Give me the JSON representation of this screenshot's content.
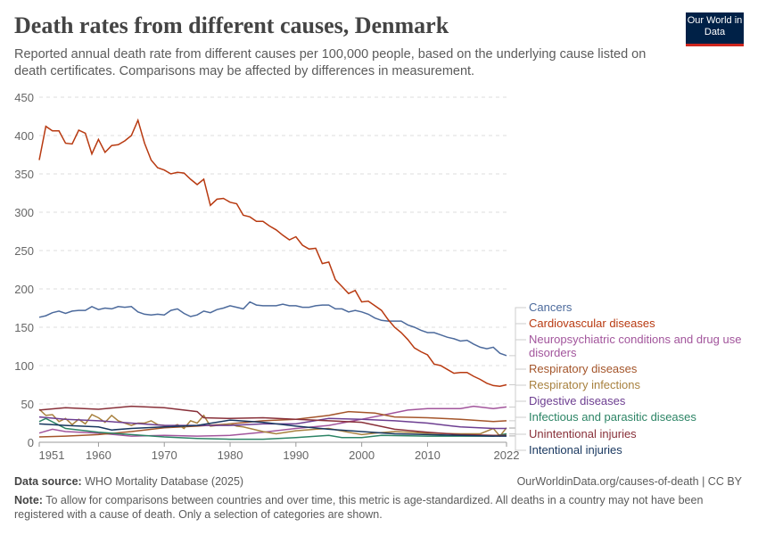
{
  "header": {
    "title": "Death rates from different causes, Denmark",
    "subtitle": "Reported annual death rate from different causes per 100,000 people, based on the underlying cause listed on death certificates. Comparisons may be affected by differences in measurement.",
    "logo": "Our World in Data"
  },
  "footer": {
    "source_label": "Data source:",
    "source": "WHO Mortality Database (2025)",
    "url": "OurWorldinData.org/causes-of-death | CC BY",
    "note_label": "Note:",
    "note": "To allow for comparisons between countries and over time, this metric is age-standardized. All deaths in a country may not have been registered with a cause of death. Only a selection of categories are shown."
  },
  "chart_data": {
    "type": "line",
    "title": "Death rates from different causes, Denmark",
    "xlabel": "",
    "ylabel": "",
    "xlim": [
      1951,
      2022
    ],
    "ylim": [
      0,
      450
    ],
    "grid": true,
    "legend": "right",
    "x_ticks": [
      "1951",
      "1960",
      "1970",
      "1980",
      "1990",
      "2000",
      "2010",
      "2022"
    ],
    "y_ticks": [
      "0",
      "50",
      "100",
      "150",
      "200",
      "250",
      "300",
      "350",
      "400",
      "450"
    ],
    "series": [
      {
        "name": "Cancers",
        "color": "#4c6a9c",
        "x": [
          1951,
          1952,
          1953,
          1954,
          1955,
          1956,
          1957,
          1958,
          1959,
          1960,
          1961,
          1962,
          1963,
          1964,
          1965,
          1966,
          1967,
          1968,
          1969,
          1970,
          1971,
          1972,
          1973,
          1974,
          1975,
          1976,
          1977,
          1978,
          1979,
          1980,
          1981,
          1982,
          1983,
          1984,
          1985,
          1986,
          1987,
          1988,
          1989,
          1990,
          1991,
          1992,
          1993,
          1994,
          1995,
          1996,
          1997,
          1998,
          1999,
          2000,
          2001,
          2002,
          2003,
          2004,
          2005,
          2006,
          2007,
          2008,
          2009,
          2010,
          2011,
          2012,
          2013,
          2014,
          2015,
          2016,
          2017,
          2018,
          2019,
          2020,
          2021,
          2022
        ],
        "values": [
          163,
          165,
          169,
          171,
          168,
          171,
          172,
          172,
          177,
          173,
          175,
          174,
          177,
          176,
          177,
          170,
          167,
          166,
          167,
          166,
          172,
          174,
          168,
          164,
          166,
          171,
          169,
          173,
          175,
          178,
          176,
          174,
          183,
          179,
          178,
          178,
          178,
          180,
          178,
          178,
          176,
          176,
          178,
          179,
          179,
          174,
          174,
          170,
          172,
          170,
          167,
          162,
          159,
          158,
          158,
          158,
          153,
          150,
          146,
          143,
          143,
          140,
          137,
          135,
          132,
          133,
          128,
          124,
          122,
          124,
          116,
          113
        ]
      },
      {
        "name": "Cardiovascular diseases",
        "color": "#b83a11",
        "x": [
          1951,
          1952,
          1953,
          1954,
          1955,
          1956,
          1957,
          1958,
          1959,
          1960,
          1961,
          1962,
          1963,
          1964,
          1965,
          1966,
          1967,
          1968,
          1969,
          1970,
          1971,
          1972,
          1973,
          1974,
          1975,
          1976,
          1977,
          1978,
          1979,
          1980,
          1981,
          1982,
          1983,
          1984,
          1985,
          1986,
          1987,
          1988,
          1989,
          1990,
          1991,
          1992,
          1993,
          1994,
          1995,
          1996,
          1997,
          1998,
          1999,
          2000,
          2001,
          2002,
          2003,
          2004,
          2005,
          2006,
          2007,
          2008,
          2009,
          2010,
          2011,
          2012,
          2013,
          2014,
          2015,
          2016,
          2017,
          2018,
          2019,
          2020,
          2021,
          2022
        ],
        "values": [
          368,
          412,
          406,
          406,
          390,
          389,
          407,
          403,
          376,
          395,
          378,
          387,
          388,
          393,
          400,
          420,
          390,
          368,
          358,
          355,
          350,
          352,
          351,
          343,
          336,
          343,
          309,
          317,
          318,
          313,
          311,
          296,
          294,
          288,
          288,
          282,
          277,
          270,
          264,
          268,
          257,
          252,
          253,
          233,
          235,
          212,
          203,
          194,
          198,
          183,
          184,
          178,
          172,
          160,
          150,
          143,
          134,
          123,
          118,
          114,
          102,
          100,
          95,
          90,
          91,
          91,
          86,
          82,
          77,
          74,
          73,
          75
        ]
      },
      {
        "name": "Neuropsychiatric conditions and drug use disorders",
        "color": "#a2559c",
        "x": [
          1951,
          1953,
          1955,
          1960,
          1965,
          1970,
          1975,
          1980,
          1985,
          1990,
          1995,
          2000,
          2003,
          2007,
          2010,
          2015,
          2017,
          2020,
          2022
        ],
        "values": [
          12,
          17,
          14,
          12,
          8,
          9,
          8,
          9,
          13,
          18,
          22,
          30,
          35,
          42,
          44,
          44,
          47,
          44,
          46
        ]
      },
      {
        "name": "Respiratory diseases",
        "color": "#a4552a",
        "x": [
          1951,
          1955,
          1960,
          1965,
          1970,
          1975,
          1980,
          1985,
          1990,
          1995,
          1998,
          2002,
          2005,
          2010,
          2015,
          2020,
          2022
        ],
        "values": [
          7,
          8,
          10,
          14,
          19,
          21,
          24,
          28,
          30,
          35,
          40,
          38,
          33,
          32,
          30,
          27,
          28
        ]
      },
      {
        "name": "Respiratory infections",
        "color": "#a8813f",
        "x": [
          1951,
          1952,
          1953,
          1954,
          1955,
          1956,
          1957,
          1958,
          1959,
          1960,
          1961,
          1962,
          1963,
          1964,
          1965,
          1966,
          1967,
          1968,
          1969,
          1970,
          1971,
          1972,
          1973,
          1974,
          1975,
          1976,
          1977,
          1978,
          1979,
          1980,
          1981,
          1982,
          1985,
          1987,
          1990,
          1993,
          1995,
          1998,
          2000,
          2002,
          2005,
          2010,
          2015,
          2018,
          2020,
          2021,
          2022
        ],
        "values": [
          43,
          35,
          36,
          27,
          31,
          23,
          30,
          24,
          36,
          32,
          26,
          35,
          28,
          25,
          22,
          25,
          25,
          28,
          23,
          22,
          20,
          23,
          18,
          28,
          25,
          35,
          21,
          22,
          23,
          24,
          21,
          20,
          14,
          11,
          15,
          17,
          18,
          13,
          10,
          12,
          14,
          12,
          11,
          11,
          18,
          8,
          19
        ]
      },
      {
        "name": "Digestive diseases",
        "color": "#6d3e91",
        "x": [
          1951,
          1955,
          1960,
          1965,
          1970,
          1975,
          1980,
          1985,
          1990,
          1995,
          2000,
          2005,
          2010,
          2015,
          2020,
          2022
        ],
        "values": [
          33,
          30,
          28,
          25,
          22,
          22,
          22,
          24,
          24,
          31,
          30,
          28,
          25,
          20,
          18,
          18
        ]
      },
      {
        "name": "Infectious and parasitic diseases",
        "color": "#2c8465",
        "x": [
          1951,
          1952,
          1955,
          1960,
          1965,
          1970,
          1975,
          1980,
          1985,
          1990,
          1995,
          1997,
          2000,
          2003,
          2010,
          2015,
          2020,
          2022
        ],
        "values": [
          27,
          31,
          18,
          13,
          10,
          7,
          5,
          4,
          4,
          6,
          9,
          6,
          6,
          9,
          8,
          8,
          8,
          11
        ]
      },
      {
        "name": "Unintentional injuries",
        "color": "#883039",
        "x": [
          1951,
          1955,
          1960,
          1965,
          1970,
          1975,
          1976,
          1980,
          1985,
          1990,
          1995,
          2000,
          2005,
          2010,
          2015,
          2020,
          2022
        ],
        "values": [
          42,
          45,
          43,
          47,
          45,
          40,
          32,
          31,
          32,
          30,
          28,
          26,
          17,
          13,
          10,
          9,
          9
        ]
      },
      {
        "name": "Intentional injuries",
        "color": "#18375f",
        "x": [
          1951,
          1955,
          1960,
          1962,
          1965,
          1970,
          1975,
          1980,
          1985,
          1990,
          1995,
          2000,
          2005,
          2010,
          2015,
          2020,
          2022
        ],
        "values": [
          24,
          22,
          20,
          16,
          18,
          20,
          22,
          29,
          26,
          21,
          17,
          14,
          11,
          10,
          9,
          8,
          8
        ]
      }
    ]
  }
}
